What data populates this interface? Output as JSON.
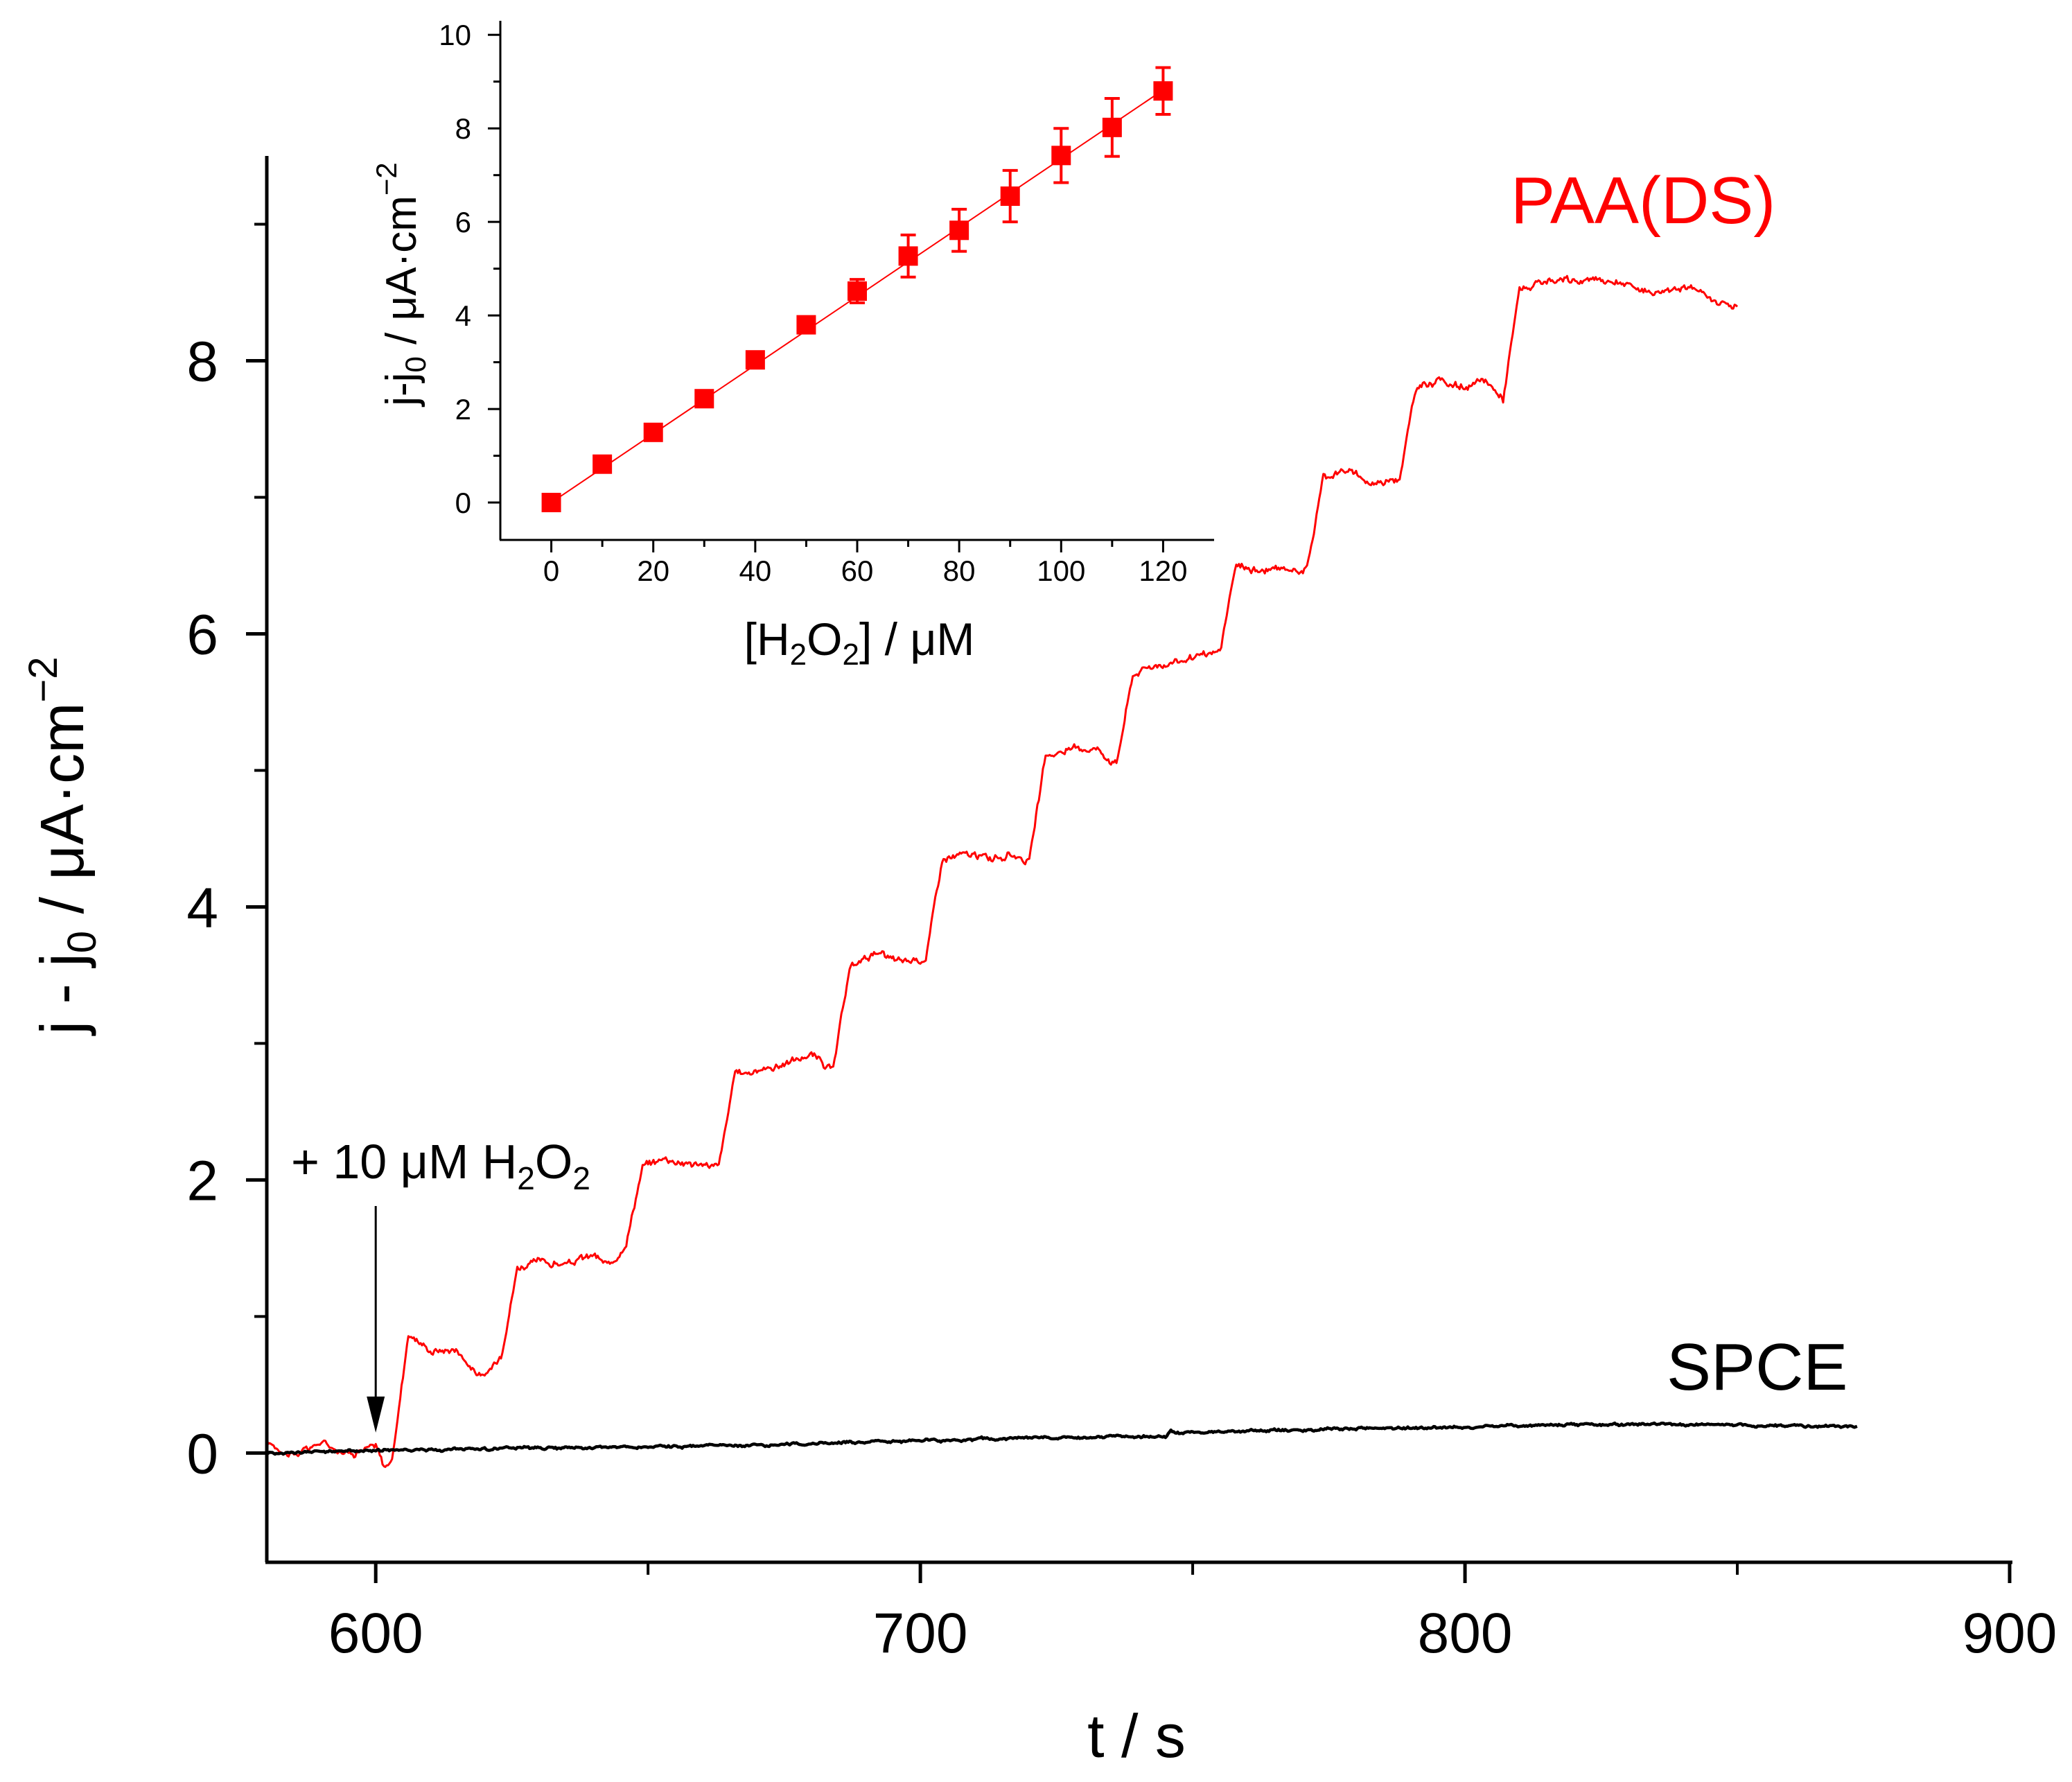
{
  "chart_data": [
    {
      "id": "main",
      "type": "line",
      "xlabel": "t / s",
      "ylabel_parts": {
        "lead": "j - j",
        "sub": "0",
        "mid": " / μA·cm",
        "sup": "−2"
      },
      "xlim": [
        580,
        900
      ],
      "ylim": [
        -0.8,
        9.5
      ],
      "xticks": [
        600,
        700,
        800,
        900
      ],
      "xticks_minor": [
        650,
        750,
        850
      ],
      "yticks": [
        0,
        2,
        4,
        6,
        8
      ],
      "yticks_minor": [
        1,
        3,
        5,
        7,
        9
      ],
      "step_start_s": 603,
      "step_interval_s": 20.3,
      "series": [
        {
          "name": "PAA(DS)",
          "color": "#ff0000",
          "x_range": [
            580,
            850
          ],
          "levels": [
            0.02,
            0.74,
            1.42,
            2.14,
            2.87,
            3.63,
            4.36,
            5.12,
            5.81,
            6.47,
            7.13,
            7.83,
            8.55
          ],
          "points": [
            [
              580,
              0.08
            ],
            [
              585,
              -0.02
            ],
            [
              590,
              0.08
            ],
            [
              595,
              0.0
            ],
            [
              600,
              0.05
            ],
            [
              601.5,
              -0.1
            ],
            [
              603,
              -0.06
            ],
            [
              606,
              0.88
            ],
            [
              610,
              0.75
            ],
            [
              615,
              0.76
            ],
            [
              618,
              0.6
            ],
            [
              620,
              0.55
            ],
            [
              623,
              0.72
            ],
            [
              626,
              1.36
            ],
            [
              630,
              1.4
            ],
            [
              635,
              1.38
            ],
            [
              640,
              1.45
            ],
            [
              643,
              1.36
            ],
            [
              646,
              1.55
            ],
            [
              649,
              2.1
            ],
            [
              653,
              2.16
            ],
            [
              658,
              2.12
            ],
            [
              663,
              2.1
            ],
            [
              666,
              2.78
            ],
            [
              670,
              2.8
            ],
            [
              675,
              2.85
            ],
            [
              680,
              2.92
            ],
            [
              684,
              2.8
            ],
            [
              687,
              3.55
            ],
            [
              691,
              3.66
            ],
            [
              696,
              3.6
            ],
            [
              701,
              3.62
            ],
            [
              704,
              4.35
            ],
            [
              708,
              4.38
            ],
            [
              713,
              4.36
            ],
            [
              718,
              4.38
            ],
            [
              720,
              4.33
            ],
            [
              723,
              5.1
            ],
            [
              727,
              5.15
            ],
            [
              732,
              5.17
            ],
            [
              736,
              5.05
            ],
            [
              739,
              5.7
            ],
            [
              742,
              5.76
            ],
            [
              747,
              5.8
            ],
            [
              752,
              5.83
            ],
            [
              755,
              5.87
            ],
            [
              758,
              6.5
            ],
            [
              762,
              6.46
            ],
            [
              767,
              6.47
            ],
            [
              771,
              6.48
            ],
            [
              774,
              7.15
            ],
            [
              778,
              7.2
            ],
            [
              783,
              7.1
            ],
            [
              788,
              7.15
            ],
            [
              791,
              7.8
            ],
            [
              795,
              7.86
            ],
            [
              800,
              7.8
            ],
            [
              804,
              7.85
            ],
            [
              807,
              7.72
            ],
            [
              810,
              8.52
            ],
            [
              815,
              8.57
            ],
            [
              820,
              8.58
            ],
            [
              825,
              8.6
            ],
            [
              830,
              8.55
            ],
            [
              835,
              8.5
            ],
            [
              840,
              8.56
            ],
            [
              845,
              8.45
            ],
            [
              850,
              8.4
            ]
          ],
          "label": "PAA(DS)"
        },
        {
          "name": "SPCE",
          "color": "#000000",
          "x_range": [
            580,
            872
          ],
          "points": [
            [
              580,
              0.0
            ],
            [
              600,
              0.02
            ],
            [
              620,
              0.03
            ],
            [
              640,
              0.04
            ],
            [
              660,
              0.05
            ],
            [
              680,
              0.07
            ],
            [
              700,
              0.09
            ],
            [
              720,
              0.11
            ],
            [
              745,
              0.12
            ],
            [
              746,
              0.17
            ],
            [
              747,
              0.15
            ],
            [
              760,
              0.16
            ],
            [
              780,
              0.18
            ],
            [
              800,
              0.19
            ],
            [
              820,
              0.21
            ],
            [
              840,
              0.21
            ],
            [
              860,
              0.2
            ],
            [
              872,
              0.19
            ]
          ],
          "label": "SPCE"
        }
      ],
      "annotation": {
        "lead": "+ 10 μM H",
        "sub1": "2",
        "mid": "O",
        "sub2": "2",
        "arrow_x": 600,
        "arrow_to_y": 0.15
      }
    },
    {
      "id": "inset",
      "type": "scatter",
      "xlabel_parts": {
        "lead": "[H",
        "sub1": "2",
        "mid": "O",
        "sub2": "2",
        "tail": "] / μM"
      },
      "ylabel_parts": {
        "lead": "j-j",
        "sub": "0",
        "mid": " / μA·cm",
        "sup": "−2"
      },
      "xlim": [
        -10,
        130
      ],
      "ylim": [
        -0.8,
        10.3
      ],
      "xticks": [
        0,
        20,
        40,
        60,
        80,
        100,
        120
      ],
      "xticks_minor": [
        10,
        30,
        50,
        70,
        90,
        110
      ],
      "yticks": [
        0,
        2,
        4,
        6,
        8,
        10
      ],
      "yticks_minor": [
        1,
        3,
        5,
        7,
        9
      ],
      "fit_line": {
        "slope": 0.0735,
        "intercept": 0.0,
        "x_range": [
          0,
          120
        ],
        "color": "#ff0000"
      },
      "x": [
        0,
        10,
        20,
        30,
        40,
        50,
        60,
        70,
        80,
        90,
        100,
        110,
        120
      ],
      "y": [
        0.0,
        0.82,
        1.5,
        2.22,
        3.05,
        3.8,
        4.52,
        5.27,
        5.82,
        6.55,
        7.42,
        8.02,
        8.8
      ],
      "err": [
        0.03,
        0.06,
        0.06,
        0.08,
        0.08,
        0.15,
        0.25,
        0.45,
        0.45,
        0.55,
        0.58,
        0.62,
        0.5
      ],
      "color": "#ff0000"
    }
  ]
}
